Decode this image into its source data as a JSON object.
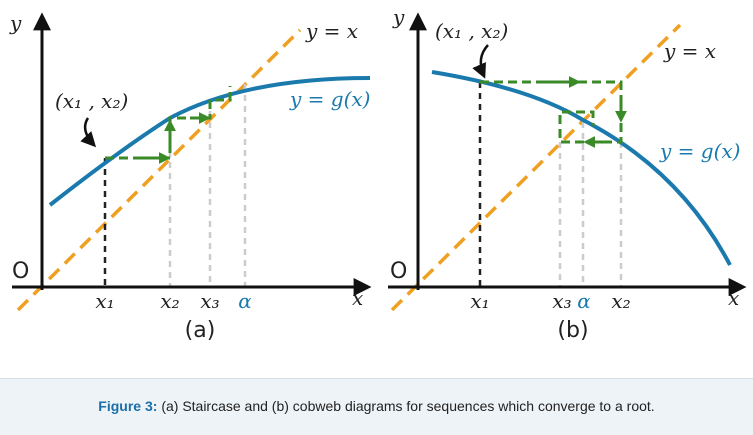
{
  "panel_a": {
    "axis_y": "y",
    "axis_x": "x",
    "origin": "O",
    "line_label": "y = x",
    "curve_label": "y = g(x)",
    "point_label": "(x₁ , x₂)",
    "ticks": [
      "x₁",
      "x₂",
      "x₃",
      "α"
    ],
    "caption": "(a)"
  },
  "panel_b": {
    "axis_y": "y",
    "axis_x": "x",
    "origin": "O",
    "line_label": "y = x",
    "curve_label": "y = g(x)",
    "point_label": "(x₁ , x₂)",
    "ticks": [
      "x₁",
      "x₃",
      "α",
      "x₂"
    ],
    "caption": "(b)"
  },
  "figure_caption": {
    "label": "Figure 3:",
    "text": "(a) Staircase and (b) cobweb diagrams for sequences which converge to a root."
  }
}
